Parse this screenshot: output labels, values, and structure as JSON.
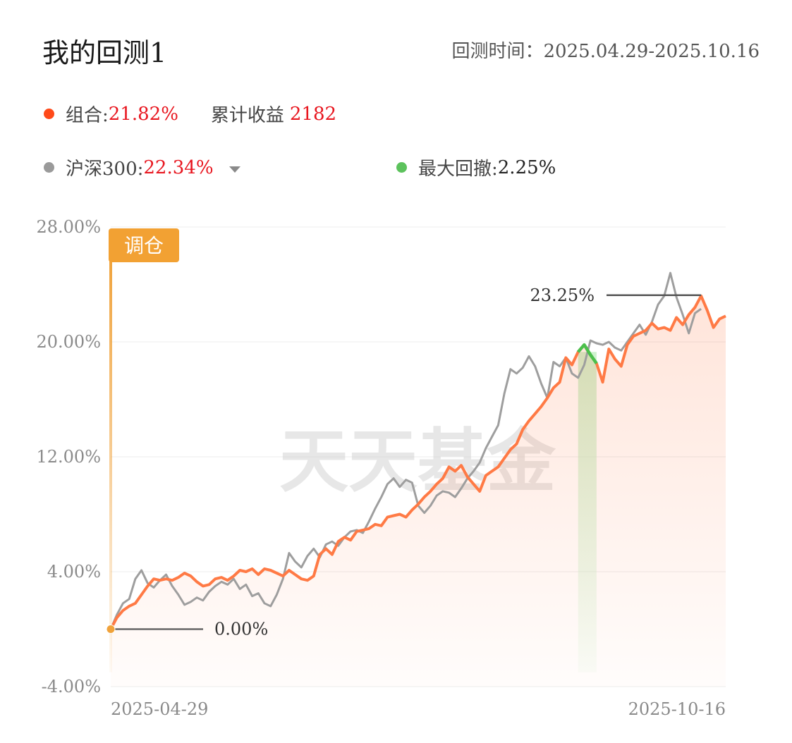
{
  "header": {
    "title": "我的回测1",
    "period_label": "回测时间：",
    "period_value": "2025.04.29-2025.10.16"
  },
  "legend": {
    "portfolio": {
      "label": "组合:",
      "value": "21.82%",
      "color": "#ff4a1a"
    },
    "cumulative": {
      "label": "累计收益",
      "value": "2182"
    },
    "benchmark": {
      "label": "沪深300:",
      "value": "22.34%",
      "color": "#9a9a9a",
      "dropdown_icon": "caret-down-icon"
    },
    "drawdown": {
      "label": "最大回撤:",
      "value": "2.25%",
      "color": "#5cc25c"
    }
  },
  "chart_data": {
    "type": "line",
    "y_ticks": [
      "28.00%",
      "20.00%",
      "12.00%",
      "4.00%",
      "-4.00%"
    ],
    "ylim": [
      -4,
      28
    ],
    "x_ticks": [
      "2025-04-29",
      "2025-10-16"
    ],
    "rebalance_label": "调仓",
    "start_label": "0.00%",
    "peak_label": "23.25%",
    "watermark": "天天基金",
    "drawdown_range": [
      76,
      79
    ],
    "series": [
      {
        "key": "portfolio",
        "color": "#ff7a45",
        "values": [
          0.0,
          0.8,
          1.3,
          1.6,
          1.8,
          2.4,
          3.0,
          3.5,
          3.4,
          3.5,
          3.4,
          3.6,
          3.9,
          3.7,
          3.3,
          3.0,
          3.1,
          3.5,
          3.6,
          3.4,
          3.7,
          4.1,
          4.0,
          4.2,
          3.8,
          4.2,
          4.1,
          3.9,
          3.7,
          4.1,
          3.8,
          3.5,
          3.4,
          3.7,
          5.2,
          5.6,
          5.2,
          6.1,
          6.4,
          6.2,
          6.8,
          6.9,
          7.0,
          7.3,
          7.2,
          7.8,
          7.9,
          8.0,
          7.8,
          8.3,
          8.7,
          9.2,
          9.6,
          10.1,
          10.5,
          11.3,
          11.0,
          11.4,
          10.6,
          10.1,
          9.6,
          10.7,
          11.0,
          11.3,
          11.9,
          12.5,
          12.9,
          13.9,
          14.5,
          15.0,
          15.5,
          16.1,
          16.8,
          17.2,
          18.9,
          18.4,
          19.3,
          19.8,
          19.1,
          18.5,
          17.2,
          19.5,
          18.8,
          18.3,
          19.8,
          20.4,
          20.6,
          20.8,
          21.3,
          20.9,
          21.0,
          20.8,
          21.7,
          21.2,
          21.9,
          22.4,
          23.2,
          22.2,
          21.0,
          21.6,
          21.8
        ]
      },
      {
        "key": "benchmark",
        "color": "#9e9e9e",
        "values": [
          0.0,
          1.0,
          1.8,
          2.1,
          3.5,
          4.1,
          3.2,
          2.9,
          3.4,
          3.8,
          3.0,
          2.4,
          1.7,
          1.9,
          2.2,
          2.0,
          2.6,
          3.0,
          3.3,
          3.1,
          3.5,
          2.8,
          3.1,
          2.3,
          2.5,
          1.8,
          1.6,
          2.4,
          3.5,
          5.3,
          4.7,
          4.3,
          5.1,
          5.6,
          5.0,
          5.9,
          6.1,
          5.8,
          6.4,
          6.8,
          6.9,
          6.7,
          7.5,
          8.4,
          9.2,
          10.1,
          10.5,
          9.9,
          10.4,
          10.2,
          8.6,
          8.1,
          8.6,
          9.3,
          9.6,
          9.5,
          9.2,
          9.8,
          10.5,
          11.0,
          11.6,
          12.6,
          13.4,
          14.2,
          16.4,
          18.1,
          17.8,
          18.2,
          19.0,
          18.3,
          17.1,
          16.1,
          18.6,
          18.3,
          18.9,
          17.8,
          17.5,
          18.4,
          20.1,
          19.9,
          19.8,
          20.0,
          19.6,
          19.4,
          20.0,
          20.6,
          21.2,
          20.5,
          21.4,
          22.6,
          23.2,
          24.8,
          23.1,
          21.9,
          20.6,
          22.0,
          22.3
        ]
      }
    ]
  }
}
